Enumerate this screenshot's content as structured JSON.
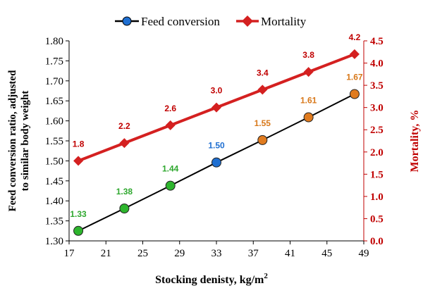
{
  "chart_data": {
    "type": "line",
    "title": "",
    "xlabel": "Stocking denisty, kg/m",
    "xlabel_superscript": "2",
    "ylabel_left": "Feed conversion ratio, adjusted",
    "ylabel_left_line2": "to similar body weight",
    "ylabel_right": "Mortality, %",
    "xlim": [
      17,
      49
    ],
    "x_ticks": [
      "17",
      "21",
      "25",
      "29",
      "33",
      "37",
      "41",
      "45",
      "49"
    ],
    "ylim_left": [
      1.3,
      1.8
    ],
    "y_ticks_left": [
      "1.30",
      "1.35",
      "1.40",
      "1.45",
      "1.50",
      "1.55",
      "1.60",
      "1.65",
      "1.70",
      "1.75",
      "1.80"
    ],
    "ylim_right": [
      0.0,
      4.5
    ],
    "y_ticks_right": [
      "0.0",
      "0.5",
      "1.0",
      "1.5",
      "2.0",
      "2.5",
      "3.0",
      "3.5",
      "4.0",
      "4.5"
    ],
    "legend_position": "top",
    "series": [
      {
        "name": "Feed conversion",
        "axis": "left",
        "line_color": "#000000",
        "marker": "circle",
        "x": [
          18,
          23,
          28,
          33,
          38,
          43,
          48
        ],
        "values": [
          1.33,
          1.38,
          1.44,
          1.5,
          1.55,
          1.61,
          1.67
        ],
        "labels": [
          "1.33",
          "1.38",
          "1.44",
          "1.50",
          "1.55",
          "1.61",
          "1.67"
        ],
        "point_colors": [
          "#2db52d",
          "#2db52d",
          "#2db52d",
          "#1f6fd1",
          "#e07b1f",
          "#e07b1f",
          "#e07b1f"
        ],
        "label_colors": [
          "#2fa82f",
          "#2fa82f",
          "#2fa82f",
          "#1f6fd1",
          "#d8781a",
          "#d8781a",
          "#d8781a"
        ],
        "plot_values": [
          1.325,
          1.381,
          1.438,
          1.496,
          1.552,
          1.609,
          1.667
        ]
      },
      {
        "name": "Mortality",
        "axis": "right",
        "line_color": "#d42020",
        "marker": "diamond",
        "x": [
          18,
          23,
          28,
          33,
          38,
          43,
          48
        ],
        "values": [
          1.8,
          2.2,
          2.6,
          3.0,
          3.4,
          3.8,
          4.2
        ],
        "labels": [
          "1.8",
          "2.2",
          "2.6",
          "3.0",
          "3.4",
          "3.8",
          "4.2"
        ]
      }
    ]
  }
}
